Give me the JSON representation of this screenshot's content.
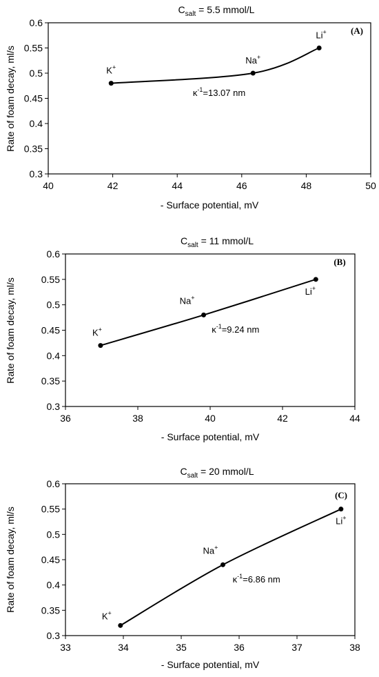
{
  "chart_data": [
    {
      "type": "line",
      "title_main": "C",
      "title_sub": "salt",
      "title_rest": " = 5.5 mmol/L",
      "panel_label": "(A)",
      "xlabel": "- Surface potential, mV",
      "ylabel": "Rate of foam decay, ml/s",
      "xlim": [
        40,
        50
      ],
      "ylim": [
        0.3,
        0.6
      ],
      "xticks": [
        40,
        42,
        44,
        46,
        48,
        50
      ],
      "xtick_labels": [
        "40",
        "42",
        "44",
        "46",
        "48",
        "50"
      ],
      "yticks": [
        0.3,
        0.35,
        0.4,
        0.45,
        0.5,
        0.55,
        0.6
      ],
      "ytick_labels": [
        "0.3",
        "0.35",
        "0.4",
        "0.45",
        "0.5",
        "0.55",
        "0.6"
      ],
      "points": [
        {
          "x": 41.95,
          "y": 0.48,
          "label": "K",
          "sup": "+"
        },
        {
          "x": 46.35,
          "y": 0.5,
          "label": "Na",
          "sup": "+"
        },
        {
          "x": 48.4,
          "y": 0.55,
          "label": "Li",
          "sup": "+"
        }
      ],
      "annotation": {
        "text_a": "κ",
        "sup": "-1",
        "text_b": "=13.07 nm",
        "x": 45.3,
        "y": 0.455
      }
    },
    {
      "type": "line",
      "title_main": "C",
      "title_sub": "salt",
      "title_rest": " = 11 mmol/L",
      "panel_label": "(B)",
      "xlabel": "- Surface potential, mV",
      "ylabel": "Rate of foam decay, ml/s",
      "xlim": [
        36,
        44
      ],
      "ylim": [
        0.3,
        0.6
      ],
      "xticks": [
        36,
        38,
        40,
        42,
        44
      ],
      "xtick_labels": [
        "36",
        "38",
        "40",
        "42",
        "44"
      ],
      "yticks": [
        0.3,
        0.35,
        0.4,
        0.45,
        0.5,
        0.55,
        0.6
      ],
      "ytick_labels": [
        "0.3",
        "0.35",
        "0.4",
        "0.45",
        "0.5",
        "0.55",
        "0.6"
      ],
      "points": [
        {
          "x": 36.97,
          "y": 0.42,
          "label": "K",
          "sup": "+"
        },
        {
          "x": 39.82,
          "y": 0.48,
          "label": "Na",
          "sup": "+"
        },
        {
          "x": 42.92,
          "y": 0.55,
          "label": "Li",
          "sup": "+"
        }
      ],
      "annotation": {
        "text_a": "κ",
        "sup": "-1",
        "text_b": "=9.24 nm",
        "x": 40.7,
        "y": 0.445
      }
    },
    {
      "type": "line",
      "title_main": "C",
      "title_sub": "salt",
      "title_rest": " = 20 mmol/L",
      "panel_label": "(C)",
      "xlabel": "- Surface potential, mV",
      "ylabel": "Rate of foam decay, ml/s",
      "xlim": [
        33,
        38
      ],
      "ylim": [
        0.3,
        0.6
      ],
      "xticks": [
        33,
        34,
        35,
        36,
        37,
        38
      ],
      "xtick_labels": [
        "33",
        "34",
        "35",
        "36",
        "37",
        "38"
      ],
      "yticks": [
        0.3,
        0.35,
        0.4,
        0.45,
        0.5,
        0.55,
        0.6
      ],
      "ytick_labels": [
        "0.3",
        "0.35",
        "0.4",
        "0.45",
        "0.5",
        "0.55",
        "0.6"
      ],
      "points": [
        {
          "x": 33.95,
          "y": 0.32,
          "label": "K",
          "sup": "+"
        },
        {
          "x": 35.72,
          "y": 0.44,
          "label": "Na",
          "sup": "+"
        },
        {
          "x": 37.76,
          "y": 0.55,
          "label": "Li",
          "sup": "+"
        }
      ],
      "annotation": {
        "text_a": "κ",
        "sup": "-1",
        "text_b": "=6.86 nm",
        "x": 36.3,
        "y": 0.405
      }
    }
  ]
}
